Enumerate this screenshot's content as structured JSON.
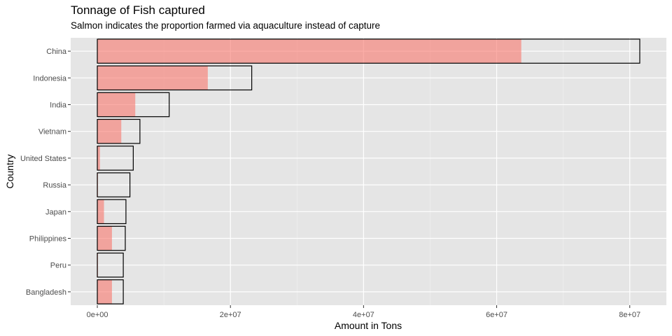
{
  "chart_data": {
    "type": "bar",
    "orientation": "horizontal",
    "title": "Tonnage of Fish captured",
    "subtitle": "Salmon indicates the proportion farmed via aquaculture instead of capture",
    "xlabel": "Amount in Tons",
    "ylabel": "Country",
    "xlim": [
      -4000000,
      85500000
    ],
    "x_ticks": [
      0,
      20000000,
      40000000,
      60000000,
      80000000
    ],
    "x_tick_labels": [
      "0e+00",
      "2e+07",
      "4e+07",
      "6e+07",
      "8e+07"
    ],
    "grid": true,
    "categories": [
      "China",
      "Indonesia",
      "India",
      "Vietnam",
      "United States",
      "Russia",
      "Japan",
      "Philippines",
      "Peru",
      "Bangladesh"
    ],
    "series": [
      {
        "role": "total",
        "values": [
          81500000,
          23200000,
          10800000,
          6400000,
          5400000,
          4900000,
          4300000,
          4200000,
          3900000,
          3900000
        ]
      },
      {
        "role": "aquaculture",
        "values": [
          63700000,
          16600000,
          5700000,
          3600000,
          400000,
          100000,
          1000000,
          2200000,
          100000,
          2200000
        ]
      }
    ],
    "colors": {
      "panel_bg": "#e5e5e5",
      "grid_major": "#ffffff",
      "aquaculture_fill": "#f8766d",
      "total_outline": "#000000"
    }
  }
}
